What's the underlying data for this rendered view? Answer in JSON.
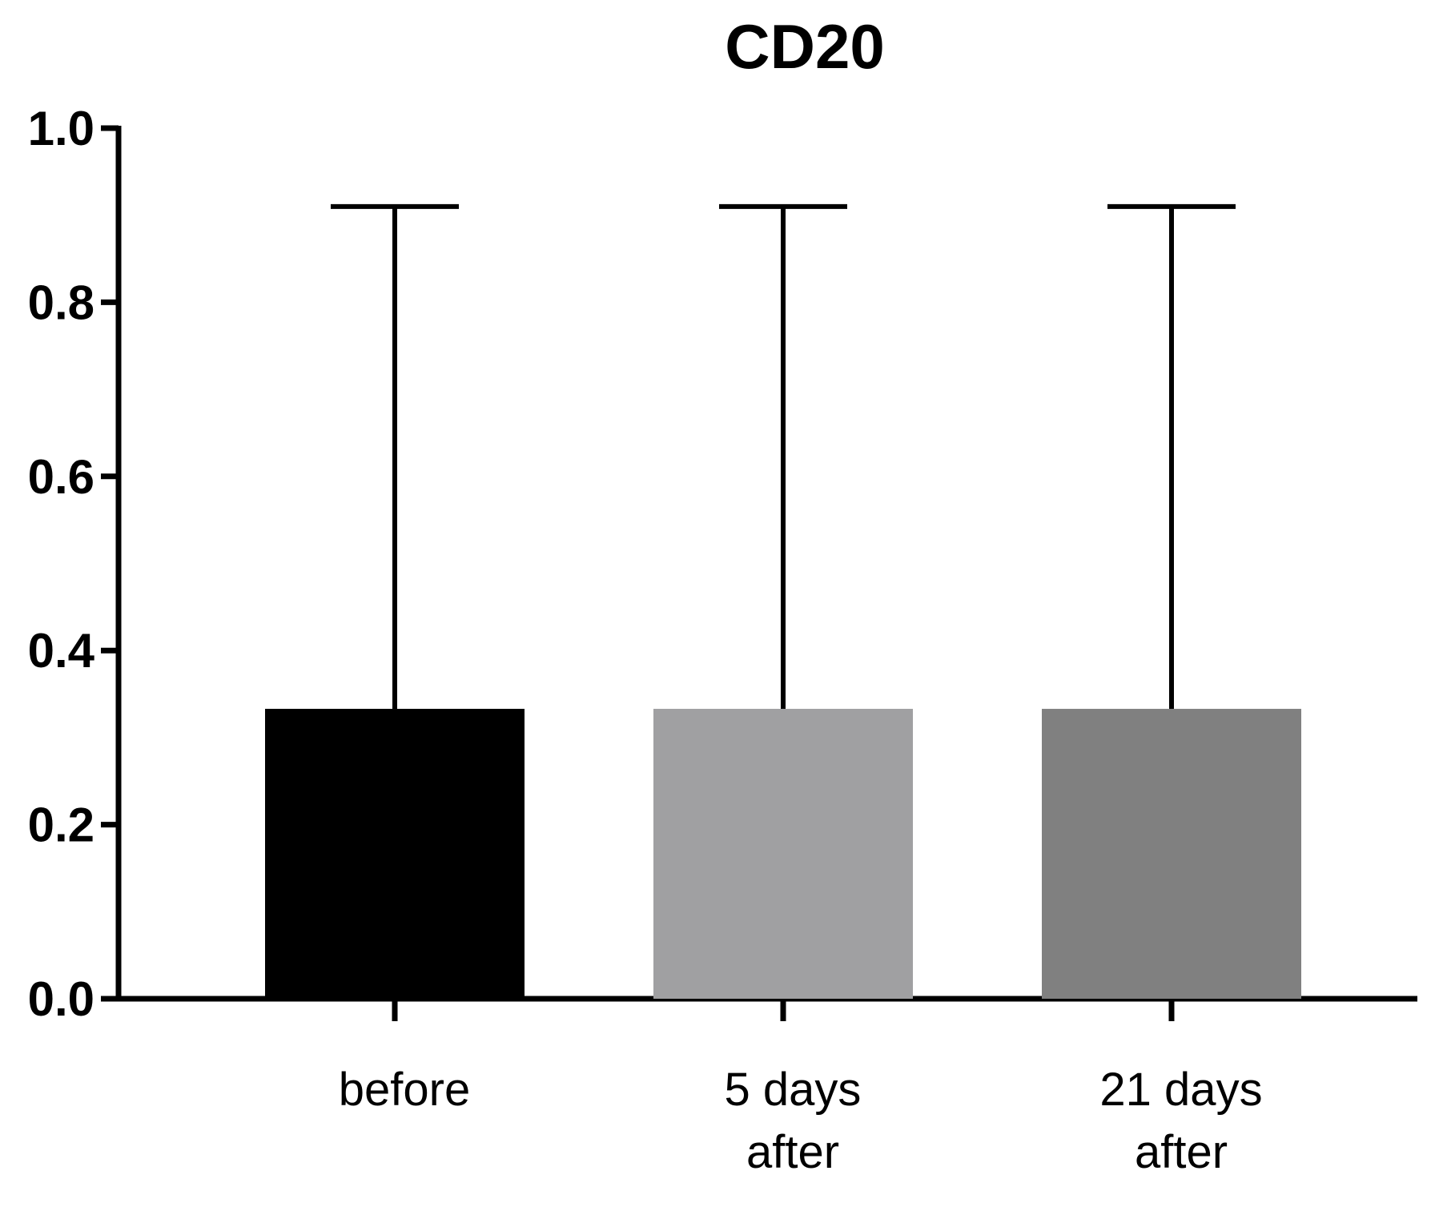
{
  "chart_data": {
    "type": "bar",
    "title": "CD20",
    "xlabel": "",
    "ylabel": "",
    "categories": [
      [
        "before"
      ],
      [
        "5 days",
        "after"
      ],
      [
        "21 days",
        "after"
      ]
    ],
    "values": [
      0.333,
      0.333,
      0.333
    ],
    "error_upper": [
      0.91,
      0.91,
      0.91
    ],
    "bar_colors": [
      "#000000",
      "#a0a0a2",
      "#808080"
    ],
    "ylim": [
      0.0,
      1.0
    ],
    "yticks": [
      "0.0",
      "0.2",
      "0.4",
      "0.6",
      "0.8",
      "1.0"
    ],
    "grid": false,
    "legend": "none"
  }
}
